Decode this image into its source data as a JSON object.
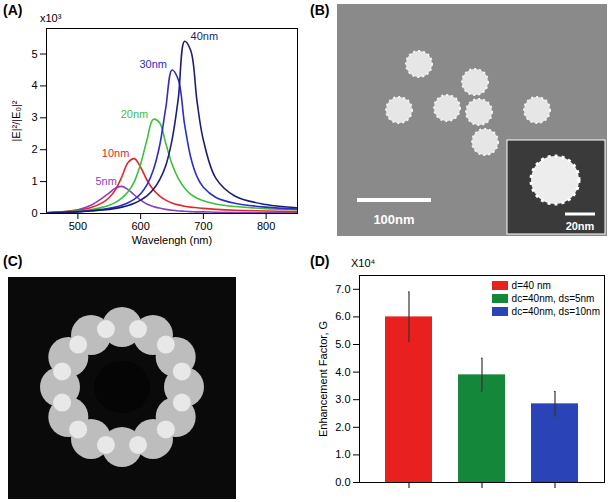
{
  "chart_data": [
    {
      "type": "line",
      "title": "(A)",
      "annotations": [
        "x10³"
      ],
      "x_label": "Wavelengh (nm)",
      "y_label": "|E|²/|E₀|²",
      "x": [
        450,
        500,
        520,
        540,
        550,
        560,
        570,
        580,
        590,
        600,
        610,
        620,
        630,
        640,
        650,
        660,
        670,
        680,
        690,
        700,
        720,
        750,
        800,
        850
      ],
      "series": [
        {
          "name": "5nm",
          "color": "#8e3fc0",
          "values": [
            0.02,
            0.12,
            0.25,
            0.5,
            0.65,
            0.8,
            0.85,
            0.75,
            0.58,
            0.42,
            0.3,
            0.22,
            0.17,
            0.13,
            0.1,
            0.08,
            0.07,
            0.06,
            0.05,
            0.05,
            0.04,
            0.03,
            0.02,
            0.02
          ]
        },
        {
          "name": "10nm",
          "color": "#e3262b",
          "values": [
            0.02,
            0.1,
            0.18,
            0.35,
            0.5,
            0.75,
            1.15,
            1.6,
            1.72,
            1.45,
            1.05,
            0.75,
            0.55,
            0.42,
            0.33,
            0.27,
            0.23,
            0.2,
            0.18,
            0.16,
            0.13,
            0.1,
            0.08,
            0.06
          ]
        },
        {
          "name": "20nm",
          "color": "#3dbf3d",
          "values": [
            0.02,
            0.08,
            0.12,
            0.2,
            0.26,
            0.35,
            0.48,
            0.68,
            1.0,
            1.55,
            2.3,
            2.95,
            2.85,
            2.2,
            1.55,
            1.1,
            0.8,
            0.6,
            0.48,
            0.4,
            0.3,
            0.22,
            0.15,
            0.12
          ]
        },
        {
          "name": "30nm",
          "color": "#2b2fc2",
          "values": [
            0.02,
            0.06,
            0.09,
            0.13,
            0.16,
            0.2,
            0.26,
            0.34,
            0.45,
            0.62,
            0.9,
            1.35,
            2.1,
            3.3,
            4.5,
            4.2,
            2.8,
            1.75,
            1.15,
            0.82,
            0.5,
            0.32,
            0.2,
            0.14
          ]
        },
        {
          "name": "40nm",
          "color": "#1c1f70",
          "values": [
            0.02,
            0.05,
            0.08,
            0.11,
            0.13,
            0.16,
            0.2,
            0.25,
            0.32,
            0.42,
            0.55,
            0.75,
            1.05,
            1.5,
            2.3,
            3.6,
            5.4,
            5.1,
            3.5,
            2.3,
            1.1,
            0.55,
            0.28,
            0.18
          ]
        }
      ],
      "xlim": [
        450,
        850
      ],
      "xticks": [
        500,
        600,
        700,
        800
      ],
      "ylim": [
        0,
        5.8
      ],
      "yticks": [
        0,
        1,
        2,
        3,
        4,
        5
      ]
    },
    {
      "type": "image",
      "title": "(B)",
      "annotations": [
        "100nm",
        "20nm"
      ]
    },
    {
      "type": "image",
      "title": "(C)"
    },
    {
      "type": "bar",
      "title": "(D)",
      "annotations": [
        "X10⁴"
      ],
      "y_label": "Enhancement Factor, G",
      "categories": [
        null,
        null,
        null
      ],
      "series": [
        {
          "name": "d=40 nm",
          "color": "#e8201f",
          "values": [
            6.0,
            null,
            null
          ],
          "errors": [
            0.9,
            null,
            null
          ]
        },
        {
          "name": "dc=40nm, ds=5nm",
          "color": "#14873a",
          "values": [
            null,
            3.9,
            null
          ],
          "errors": [
            null,
            0.6,
            null
          ]
        },
        {
          "name": "dc=40nm, ds=10nm",
          "color": "#2a44b8",
          "values": [
            null,
            null,
            2.85
          ],
          "errors": [
            null,
            null,
            0.45
          ]
        }
      ],
      "ylim": [
        0,
        7.5
      ],
      "yticks": [
        {
          "value": 0,
          "label": "0.0"
        },
        {
          "value": 1,
          "label": "1.0"
        },
        {
          "value": 2,
          "label": "2.0"
        },
        {
          "value": 3,
          "label": "3.0"
        },
        {
          "value": 4,
          "label": "4.0"
        },
        {
          "value": 5,
          "label": "5.0"
        },
        {
          "value": 6,
          "label": "6.0"
        },
        {
          "value": 7,
          "label": "7.0"
        }
      ],
      "tick_labels": "y",
      "legend": "top-right"
    }
  ]
}
